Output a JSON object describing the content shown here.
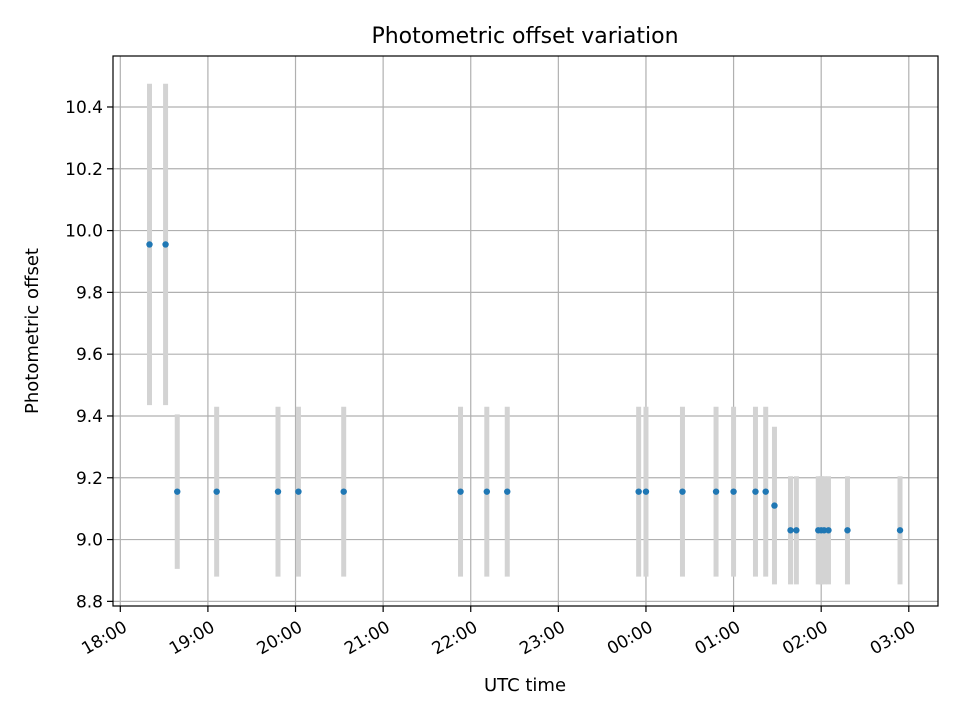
{
  "chart_data": {
    "type": "scatter",
    "title": "Photometric offset variation",
    "xlabel": "UTC time",
    "ylabel": "Photometric offset",
    "x_axis": "time",
    "xlim": [
      "2024-01-01T17:55",
      "2024-01-02T03:20"
    ],
    "ylim": [
      8.785,
      10.565
    ],
    "grid": true,
    "x_ticks": [
      {
        "t": "2024-01-01T18:00",
        "label": "18:00"
      },
      {
        "t": "2024-01-01T19:00",
        "label": "19:00"
      },
      {
        "t": "2024-01-01T20:00",
        "label": "20:00"
      },
      {
        "t": "2024-01-01T21:00",
        "label": "21:00"
      },
      {
        "t": "2024-01-01T22:00",
        "label": "22:00"
      },
      {
        "t": "2024-01-01T23:00",
        "label": "23:00"
      },
      {
        "t": "2024-01-02T00:00",
        "label": "00:00"
      },
      {
        "t": "2024-01-02T01:00",
        "label": "01:00"
      },
      {
        "t": "2024-01-02T02:00",
        "label": "02:00"
      },
      {
        "t": "2024-01-02T03:00",
        "label": "03:00"
      }
    ],
    "y_ticks": [
      {
        "v": 8.8,
        "label": "8.8"
      },
      {
        "v": 9.0,
        "label": "9.0"
      },
      {
        "v": 9.2,
        "label": "9.2"
      },
      {
        "v": 9.4,
        "label": "9.4"
      },
      {
        "v": 9.6,
        "label": "9.6"
      },
      {
        "v": 9.8,
        "label": "9.8"
      },
      {
        "v": 10.0,
        "label": "10.0"
      },
      {
        "v": 10.2,
        "label": "10.2"
      },
      {
        "v": 10.4,
        "label": "10.4"
      }
    ],
    "points": [
      {
        "t": "2024-01-01T18:20",
        "y": 9.955,
        "err": 0.52
      },
      {
        "t": "2024-01-01T18:31",
        "y": 9.955,
        "err": 0.52
      },
      {
        "t": "2024-01-01T18:39",
        "y": 9.155,
        "err": 0.25
      },
      {
        "t": "2024-01-01T19:06",
        "y": 9.155,
        "err": 0.275
      },
      {
        "t": "2024-01-01T19:48",
        "y": 9.155,
        "err": 0.275
      },
      {
        "t": "2024-01-01T20:02",
        "y": 9.155,
        "err": 0.275
      },
      {
        "t": "2024-01-01T20:33",
        "y": 9.155,
        "err": 0.275
      },
      {
        "t": "2024-01-01T21:53",
        "y": 9.155,
        "err": 0.275
      },
      {
        "t": "2024-01-01T22:11",
        "y": 9.155,
        "err": 0.275
      },
      {
        "t": "2024-01-01T22:25",
        "y": 9.155,
        "err": 0.275
      },
      {
        "t": "2024-01-01T23:55",
        "y": 9.155,
        "err": 0.275
      },
      {
        "t": "2024-01-02T00:00",
        "y": 9.155,
        "err": 0.275
      },
      {
        "t": "2024-01-02T00:25",
        "y": 9.155,
        "err": 0.275
      },
      {
        "t": "2024-01-02T00:48",
        "y": 9.155,
        "err": 0.275
      },
      {
        "t": "2024-01-02T01:00",
        "y": 9.155,
        "err": 0.275
      },
      {
        "t": "2024-01-02T01:15",
        "y": 9.155,
        "err": 0.275
      },
      {
        "t": "2024-01-02T01:22",
        "y": 9.155,
        "err": 0.275
      },
      {
        "t": "2024-01-02T01:28",
        "y": 9.11,
        "err": 0.255
      },
      {
        "t": "2024-01-02T01:39",
        "y": 9.03,
        "err": 0.175
      },
      {
        "t": "2024-01-02T01:43",
        "y": 9.03,
        "err": 0.175
      },
      {
        "t": "2024-01-02T01:58",
        "y": 9.03,
        "err": 0.175
      },
      {
        "t": "2024-01-02T02:00",
        "y": 9.03,
        "err": 0.175
      },
      {
        "t": "2024-01-02T02:02",
        "y": 9.03,
        "err": 0.175
      },
      {
        "t": "2024-01-02T02:05",
        "y": 9.03,
        "err": 0.175
      },
      {
        "t": "2024-01-02T02:18",
        "y": 9.03,
        "err": 0.175
      },
      {
        "t": "2024-01-02T02:54",
        "y": 9.03,
        "err": 0.175
      }
    ],
    "colors": {
      "marker": "#1f77b4",
      "errorbar": "#d3d3d3",
      "grid": "#b0b0b0",
      "axes": "#000000"
    }
  }
}
